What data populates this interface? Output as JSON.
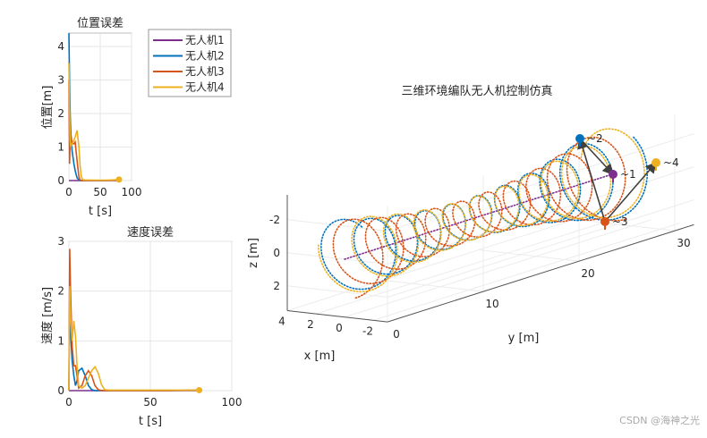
{
  "colors": {
    "无人机1": "#7E2F8E",
    "无人机2": "#0072BD",
    "无人机3": "#D95319",
    "无人机4": "#EDB120",
    "formation_edge": "#404040"
  },
  "legend": {
    "placement": "outside-right-of-first-plot",
    "entries": [
      "无人机1",
      "无人机2",
      "无人机3",
      "无人机4"
    ]
  },
  "watermark": "CSDN @海神之光",
  "chart_data": [
    {
      "type": "line",
      "title": "位置误差",
      "xlabel": "t [s]",
      "ylabel": "位置[m]",
      "xlim": [
        0,
        100
      ],
      "ylim": [
        0,
        4.4
      ],
      "xticks": [
        "0",
        "50",
        "100"
      ],
      "yticks": [
        "0",
        "1",
        "2",
        "3",
        "4"
      ],
      "grid": true,
      "x": [
        0,
        1,
        2,
        3,
        5,
        8,
        10,
        13,
        16,
        18,
        20,
        22,
        25,
        40,
        60,
        80
      ],
      "series": [
        {
          "name": "无人机1",
          "values": [
            0,
            0,
            0,
            0,
            0,
            0,
            0,
            0,
            0,
            0,
            0,
            0,
            0,
            0,
            0,
            0
          ]
        },
        {
          "name": "无人机2",
          "values": [
            4.4,
            3.0,
            2.0,
            1.4,
            0.9,
            0.5,
            0.3,
            0.08,
            0.02,
            0,
            0,
            0,
            0,
            0,
            0,
            0.02
          ]
        },
        {
          "name": "无人机3",
          "values": [
            3.0,
            0.5,
            1.2,
            1.4,
            1.1,
            1.1,
            1.15,
            0.6,
            0.1,
            0.02,
            0,
            0,
            0,
            0,
            0,
            0.02
          ]
        },
        {
          "name": "无人机4",
          "values": [
            3.5,
            2.2,
            1.2,
            1.0,
            1.1,
            1.2,
            1.3,
            1.5,
            1.0,
            0.4,
            0.1,
            0.03,
            0.02,
            0.01,
            0.01,
            0.03
          ]
        }
      ]
    },
    {
      "type": "line",
      "title": "速度误差",
      "xlabel": "t [s]",
      "ylabel": "速度 [m/s]",
      "xlim": [
        0,
        100
      ],
      "ylim": [
        0,
        3
      ],
      "xticks": [
        "0",
        "50",
        "100"
      ],
      "yticks": [
        "0",
        "1",
        "2",
        "3"
      ],
      "grid": true,
      "x": [
        0,
        0.5,
        1,
        2,
        3,
        4,
        5,
        6,
        8,
        10,
        12,
        14,
        16,
        18,
        20,
        22,
        25,
        40,
        60,
        80
      ],
      "series": [
        {
          "name": "无人机1",
          "values": [
            0,
            0,
            0,
            0,
            0,
            0,
            0,
            0,
            0,
            0,
            0,
            0,
            0,
            0,
            0,
            0,
            0,
            0,
            0,
            0
          ]
        },
        {
          "name": "无人机2",
          "values": [
            0,
            2.0,
            1.2,
            0.6,
            0.3,
            0.1,
            0.2,
            0.4,
            0.45,
            0.3,
            0.1,
            0.02,
            0,
            0,
            0,
            0,
            0,
            0,
            0,
            0.01
          ]
        },
        {
          "name": "无人机3",
          "values": [
            0,
            2.85,
            2.0,
            0.9,
            0.5,
            0.5,
            0.3,
            0.05,
            0.1,
            0.3,
            0.4,
            0.3,
            0.1,
            0.02,
            0,
            0,
            0,
            0,
            0,
            0.01
          ]
        },
        {
          "name": "无人机4",
          "values": [
            0,
            2.1,
            1.5,
            1.0,
            1.4,
            1.1,
            0.5,
            0.1,
            0.05,
            0.1,
            0.25,
            0.4,
            0.48,
            0.35,
            0.12,
            0.02,
            0.01,
            0.01,
            0.01,
            0.01
          ]
        }
      ]
    },
    {
      "type": "line3d",
      "title": "三维环境编队无人机控制仿真",
      "xlabel": "x [m]",
      "ylabel": "y [m]",
      "zlabel": "z [m]",
      "xlim": [
        -3,
        4
      ],
      "ylim": [
        0,
        32
      ],
      "zlim": [
        -3.5,
        3.5
      ],
      "z_reversed": true,
      "xticks": [
        "4",
        "2",
        "0",
        "-2"
      ],
      "yticks": [
        "0",
        "10",
        "20",
        "30"
      ],
      "zticks": [
        "-2",
        "0",
        "2"
      ],
      "grid": true,
      "line_style": "dotted",
      "series": [
        {
          "name": "无人机1",
          "path": "straight line along y at x=0, z=0",
          "y_range": [
            0,
            28
          ]
        },
        {
          "name": "无人机2",
          "path": "helix around 无人机1",
          "y_range": [
            0,
            28
          ]
        },
        {
          "name": "无人机3",
          "path": "helix around 无人机1",
          "y_range": [
            0,
            28
          ]
        },
        {
          "name": "无人机4",
          "path": "helix around 无人机1",
          "y_range": [
            0,
            28
          ]
        }
      ],
      "agent_labels": [
        "1",
        "2",
        "3",
        "4"
      ],
      "formation_edges": [
        [
          "2",
          "1"
        ],
        [
          "3",
          "2"
        ],
        [
          "3",
          "4"
        ]
      ]
    }
  ]
}
